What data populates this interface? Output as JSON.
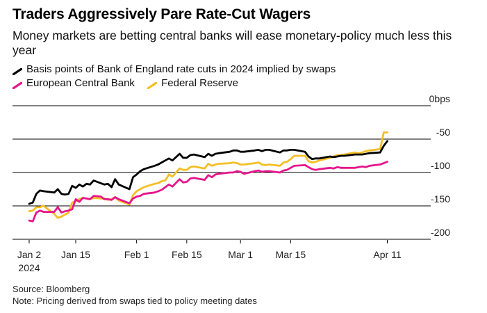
{
  "title": "Traders Aggressively Pare Rate-Cut Wagers",
  "subtitle": "Money markets are betting central banks will ease monetary-policy much less this year",
  "legend": [
    {
      "name": "Basis points of Bank of England rate cuts in 2024 implied by swaps",
      "color": "#000000"
    },
    {
      "name": "European Central Bank",
      "color": "#e6168c"
    },
    {
      "name": "Federal Reserve",
      "color": "#f4bf26"
    }
  ],
  "footer": {
    "source": "Source: Bloomberg",
    "note": "Note: Pricing derived from swaps tied to policy meeting dates"
  },
  "chart_data": {
    "type": "line",
    "title": "Traders Aggressively Pare Rate-Cut Wagers",
    "xlabel": "",
    "ylabel": "bps",
    "ylim": [
      -200,
      0
    ],
    "xlim_days": [
      0,
      103
    ],
    "y_ticks": [
      {
        "value": 0,
        "label": "0bps"
      },
      {
        "value": -50,
        "label": "-50"
      },
      {
        "value": -100,
        "label": "-100"
      },
      {
        "value": -150,
        "label": "-150"
      },
      {
        "value": -200,
        "label": "-200"
      }
    ],
    "x_ticks": [
      {
        "day": 0,
        "label": "Jan 2",
        "sublabel": "2024"
      },
      {
        "day": 13,
        "label": "Jan 15"
      },
      {
        "day": 30,
        "label": "Feb 1"
      },
      {
        "day": 44,
        "label": "Feb 15"
      },
      {
        "day": 59,
        "label": "Mar 1"
      },
      {
        "day": 73,
        "label": "Mar 15"
      },
      {
        "day": 100,
        "label": "Apr 11"
      }
    ],
    "grid": true,
    "series": [
      {
        "name": "Basis points of Bank of England rate cuts in 2024 implied by swaps",
        "color": "#000000",
        "days": [
          0,
          1,
          2,
          3,
          4,
          7,
          8,
          9,
          10,
          11,
          12,
          13,
          14,
          15,
          16,
          17,
          18,
          20,
          21,
          22,
          23,
          24,
          25,
          28,
          29,
          30,
          31,
          32,
          35,
          36,
          37,
          38,
          39,
          40,
          42,
          43,
          44,
          45,
          46,
          49,
          50,
          51,
          52,
          53,
          56,
          57,
          58,
          59,
          60,
          63,
          64,
          65,
          66,
          67,
          70,
          71,
          72,
          73,
          74,
          77,
          78,
          79,
          80,
          81,
          84,
          85,
          86,
          87,
          88,
          91,
          92,
          93,
          94,
          95,
          98,
          99,
          100
        ],
        "values": [
          -147,
          -145,
          -132,
          -127,
          -128,
          -130,
          -125,
          -132,
          -133,
          -132,
          -120,
          -123,
          -118,
          -121,
          -117,
          -118,
          -112,
          -116,
          -118,
          -117,
          -122,
          -110,
          -118,
          -125,
          -107,
          -103,
          -98,
          -95,
          -90,
          -88,
          -85,
          -82,
          -79,
          -82,
          -72,
          -78,
          -78,
          -74,
          -73,
          -77,
          -72,
          -75,
          -72,
          -71,
          -69,
          -67,
          -67,
          -69,
          -69,
          -67,
          -66,
          -68,
          -66,
          -66,
          -70,
          -67,
          -67,
          -66,
          -66,
          -69,
          -76,
          -80,
          -79,
          -79,
          -76,
          -77,
          -76,
          -75,
          -75,
          -73,
          -73,
          -73,
          -72,
          -71,
          -70,
          -60,
          -53
        ]
      },
      {
        "name": "European Central Bank",
        "color": "#e6168c",
        "days": [
          0,
          1,
          2,
          3,
          4,
          7,
          8,
          9,
          10,
          11,
          12,
          13,
          14,
          15,
          16,
          17,
          18,
          20,
          21,
          22,
          23,
          24,
          25,
          28,
          29,
          30,
          31,
          32,
          35,
          36,
          37,
          38,
          39,
          40,
          42,
          43,
          44,
          45,
          46,
          49,
          50,
          51,
          52,
          53,
          56,
          57,
          58,
          59,
          60,
          63,
          64,
          65,
          66,
          67,
          70,
          71,
          72,
          73,
          74,
          77,
          78,
          79,
          80,
          81,
          84,
          85,
          86,
          87,
          88,
          91,
          92,
          93,
          94,
          95,
          98,
          99,
          100
        ],
        "values": [
          -172,
          -173,
          -160,
          -157,
          -159,
          -159,
          -152,
          -160,
          -158,
          -157,
          -155,
          -140,
          -144,
          -138,
          -139,
          -140,
          -135,
          -136,
          -140,
          -140,
          -141,
          -137,
          -140,
          -146,
          -139,
          -136,
          -135,
          -132,
          -130,
          -128,
          -126,
          -122,
          -118,
          -121,
          -110,
          -115,
          -114,
          -109,
          -108,
          -111,
          -104,
          -107,
          -103,
          -102,
          -100,
          -100,
          -98,
          -99,
          -102,
          -98,
          -97,
          -99,
          -98,
          -98,
          -100,
          -97,
          -96,
          -93,
          -90,
          -89,
          -92,
          -95,
          -96,
          -95,
          -93,
          -94,
          -92,
          -93,
          -93,
          -93,
          -92,
          -91,
          -92,
          -90,
          -88,
          -86,
          -84
        ]
      },
      {
        "name": "Federal Reserve",
        "color": "#f4bf26",
        "days": [
          0,
          1,
          2,
          3,
          4,
          7,
          8,
          9,
          10,
          11,
          12,
          13,
          14,
          15,
          16,
          17,
          18,
          20,
          21,
          22,
          23,
          24,
          25,
          28,
          29,
          30,
          31,
          32,
          35,
          36,
          37,
          38,
          39,
          40,
          42,
          43,
          44,
          45,
          46,
          49,
          50,
          51,
          52,
          53,
          56,
          57,
          58,
          59,
          60,
          63,
          64,
          65,
          66,
          67,
          70,
          71,
          72,
          73,
          74,
          77,
          78,
          79,
          80,
          81,
          84,
          85,
          86,
          87,
          88,
          91,
          92,
          93,
          94,
          95,
          98,
          99,
          100
        ],
        "values": [
          -158,
          -157,
          -152,
          -152,
          -150,
          -162,
          -168,
          -166,
          -163,
          -160,
          -145,
          -143,
          -140,
          -138,
          -139,
          -140,
          -138,
          -139,
          -139,
          -141,
          -140,
          -137,
          -142,
          -148,
          -134,
          -128,
          -125,
          -122,
          -117,
          -116,
          -113,
          -112,
          -103,
          -106,
          -94,
          -96,
          -96,
          -92,
          -91,
          -94,
          -87,
          -90,
          -88,
          -87,
          -86,
          -85,
          -86,
          -88,
          -88,
          -86,
          -85,
          -88,
          -89,
          -88,
          -90,
          -85,
          -84,
          -80,
          -75,
          -75,
          -83,
          -85,
          -84,
          -82,
          -78,
          -76,
          -74,
          -74,
          -73,
          -70,
          -71,
          -70,
          -68,
          -67,
          -65,
          -40,
          -40
        ]
      }
    ]
  }
}
